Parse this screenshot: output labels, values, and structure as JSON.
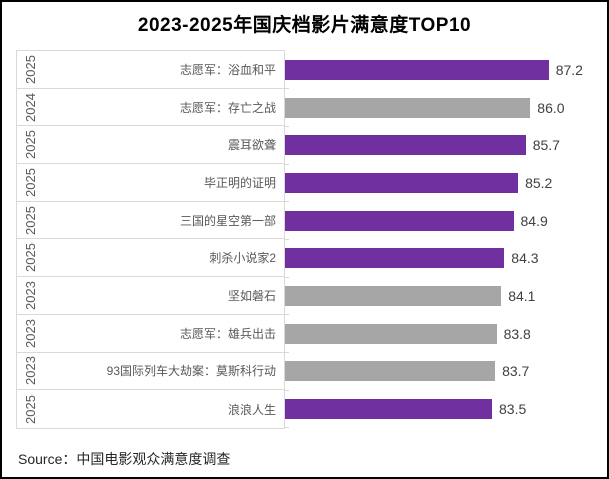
{
  "header": {
    "title": "2023-2025年国庆档影片满意度TOP10"
  },
  "footer": {
    "source": "Source：中国电影观众满意度调查"
  },
  "chart_data": {
    "type": "bar",
    "orientation": "horizontal",
    "title": "2023-2025年国庆档影片满意度TOP10",
    "value_axis": {
      "min": 70,
      "max": 88,
      "ticks_visible": false,
      "gridlines": false
    },
    "legend": "none",
    "data_labels": "outside-end",
    "colors": {
      "bar_2025": "#7030A0",
      "bar_past_years": "#A6A6A6",
      "axis_border": "#D9D9D9"
    },
    "items": [
      {
        "year": "2025",
        "title": "志愿军：浴血和平",
        "value": 87.2,
        "highlight": true
      },
      {
        "year": "2024",
        "title": "志愿军：存亡之战",
        "value": 86.0,
        "highlight": false
      },
      {
        "year": "2025",
        "title": "震耳欲聋",
        "value": 85.7,
        "highlight": true
      },
      {
        "year": "2025",
        "title": "毕正明的证明",
        "value": 85.2,
        "highlight": true
      },
      {
        "year": "2025",
        "title": "三国的星空第一部",
        "value": 84.9,
        "highlight": true
      },
      {
        "year": "2025",
        "title": "刺杀小说家2",
        "value": 84.3,
        "highlight": true
      },
      {
        "year": "2023",
        "title": "坚如磐石",
        "value": 84.1,
        "highlight": false
      },
      {
        "year": "2023",
        "title": "志愿军：雄兵出击",
        "value": 83.8,
        "highlight": false
      },
      {
        "year": "2023",
        "title": "93国际列车大劫案：莫斯科行动",
        "value": 83.7,
        "highlight": false
      },
      {
        "year": "2025",
        "title": "浪浪人生",
        "value": 83.5,
        "highlight": true
      }
    ]
  }
}
